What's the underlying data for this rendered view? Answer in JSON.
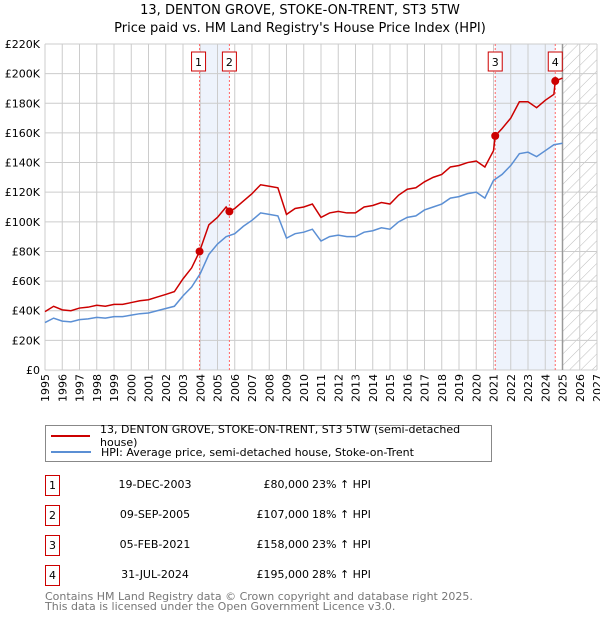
{
  "chart_data": {
    "type": "line",
    "title": "13, DENTON GROVE, STOKE-ON-TRENT, ST3 5TW",
    "subtitle": "Price paid vs. HM Land Registry's House Price Index (HPI)",
    "xlim": [
      1995,
      2027
    ],
    "ylim": [
      0,
      220000
    ],
    "y_ticks": [
      0,
      20000,
      40000,
      60000,
      80000,
      100000,
      120000,
      140000,
      160000,
      180000,
      200000,
      220000
    ],
    "y_tick_labels": [
      "£0",
      "£20K",
      "£40K",
      "£60K",
      "£80K",
      "£100K",
      "£120K",
      "£140K",
      "£160K",
      "£180K",
      "£200K",
      "£220K"
    ],
    "x_ticks": [
      "1995",
      "1996",
      "1997",
      "1998",
      "1999",
      "2000",
      "2001",
      "2002",
      "2003",
      "2004",
      "2005",
      "2006",
      "2007",
      "2008",
      "2009",
      "2010",
      "2011",
      "2012",
      "2013",
      "2014",
      "2015",
      "2016",
      "2017",
      "2018",
      "2019",
      "2020",
      "2021",
      "2022",
      "2023",
      "2024",
      "2025",
      "2026",
      "2027"
    ],
    "grid": true,
    "forecast_hatch_from": 2025.0,
    "series": [
      {
        "name": "13, DENTON GROVE, STOKE-ON-TRENT, ST3 5TW (semi-detached house)",
        "color": "#cc0000",
        "x": [
          1995,
          1995.5,
          1996,
          1996.5,
          1997,
          1997.5,
          1998,
          1998.5,
          1999,
          1999.5,
          2000,
          2000.5,
          2001,
          2001.5,
          2002,
          2002.5,
          2003,
          2003.5,
          2003.96,
          2004.5,
          2005,
          2005.5,
          2005.69,
          2006,
          2006.5,
          2007,
          2007.5,
          2008,
          2008.5,
          2009,
          2009.5,
          2010,
          2010.5,
          2011,
          2011.5,
          2012,
          2012.5,
          2013,
          2013.5,
          2014,
          2014.5,
          2015,
          2015.5,
          2016,
          2016.5,
          2017,
          2017.5,
          2018,
          2018.5,
          2019,
          2019.5,
          2020,
          2020.5,
          2021,
          2021.1,
          2021.5,
          2022,
          2022.5,
          2023,
          2023.5,
          2024,
          2024.5,
          2024.58,
          2025
        ],
        "y": [
          39400,
          43000,
          40600,
          40000,
          41800,
          42400,
          43700,
          43000,
          44300,
          44300,
          45500,
          46700,
          47400,
          49200,
          51000,
          52900,
          61500,
          68900,
          80000,
          98000,
          103000,
          110000,
          107000,
          109000,
          114000,
          119000,
          125000,
          124000,
          123000,
          105000,
          109000,
          110000,
          112000,
          103000,
          106000,
          107000,
          106000,
          106000,
          110000,
          111000,
          113000,
          112000,
          118000,
          122000,
          123000,
          127000,
          130000,
          132000,
          137000,
          138000,
          140000,
          141000,
          137000,
          148000,
          158000,
          163000,
          170000,
          181000,
          181000,
          177000,
          182000,
          186000,
          195000,
          197000
        ]
      },
      {
        "name": "HPI: Average price, semi-detached house, Stoke-on-Trent",
        "color": "#5b8fd4",
        "x": [
          1995,
          1995.5,
          1996,
          1996.5,
          1997,
          1997.5,
          1998,
          1998.5,
          1999,
          1999.5,
          2000,
          2000.5,
          2001,
          2001.5,
          2002,
          2002.5,
          2003,
          2003.5,
          2004,
          2004.5,
          2005,
          2005.5,
          2006,
          2006.5,
          2007,
          2007.5,
          2008,
          2008.5,
          2009,
          2009.5,
          2010,
          2010.5,
          2011,
          2011.5,
          2012,
          2012.5,
          2013,
          2013.5,
          2014,
          2014.5,
          2015,
          2015.5,
          2016,
          2016.5,
          2017,
          2017.5,
          2018,
          2018.5,
          2019,
          2019.5,
          2020,
          2020.5,
          2021,
          2021.5,
          2022,
          2022.5,
          2023,
          2023.5,
          2024,
          2024.5,
          2025
        ],
        "y": [
          32000,
          35000,
          33000,
          32500,
          34000,
          34500,
          35500,
          35000,
          36000,
          36000,
          37000,
          38000,
          38500,
          40000,
          41500,
          43000,
          50000,
          56000,
          65000,
          78000,
          85000,
          90000,
          92000,
          97000,
          101000,
          106000,
          105000,
          104000,
          89000,
          92000,
          93000,
          95000,
          87000,
          90000,
          91000,
          90000,
          90000,
          93000,
          94000,
          96000,
          95000,
          100000,
          103000,
          104000,
          108000,
          110000,
          112000,
          116000,
          117000,
          119000,
          120000,
          116000,
          128000,
          132000,
          138000,
          146000,
          147000,
          144000,
          148000,
          152000,
          153000
        ]
      }
    ],
    "sales": [
      {
        "n": "1",
        "x": 2003.96,
        "y": 80000
      },
      {
        "n": "2",
        "x": 2005.69,
        "y": 107000
      },
      {
        "n": "3",
        "x": 2021.1,
        "y": 158000
      },
      {
        "n": "4",
        "x": 2024.58,
        "y": 195000
      }
    ]
  },
  "legend": {
    "red": "13, DENTON GROVE, STOKE-ON-TRENT, ST3 5TW (semi-detached house)",
    "blue": "HPI: Average price, semi-detached house, Stoke-on-Trent"
  },
  "table": [
    {
      "n": "1",
      "date": "19-DEC-2003",
      "price": "£80,000",
      "hpi": "23% ↑ HPI"
    },
    {
      "n": "2",
      "date": "09-SEP-2005",
      "price": "£107,000",
      "hpi": "18% ↑ HPI"
    },
    {
      "n": "3",
      "date": "05-FEB-2021",
      "price": "£158,000",
      "hpi": "23% ↑ HPI"
    },
    {
      "n": "4",
      "date": "31-JUL-2024",
      "price": "£195,000",
      "hpi": "28% ↑ HPI"
    }
  ],
  "footer": {
    "line1": "Contains HM Land Registry data © Crown copyright and database right 2025.",
    "line2": "This data is licensed under the Open Government Licence v3.0."
  }
}
